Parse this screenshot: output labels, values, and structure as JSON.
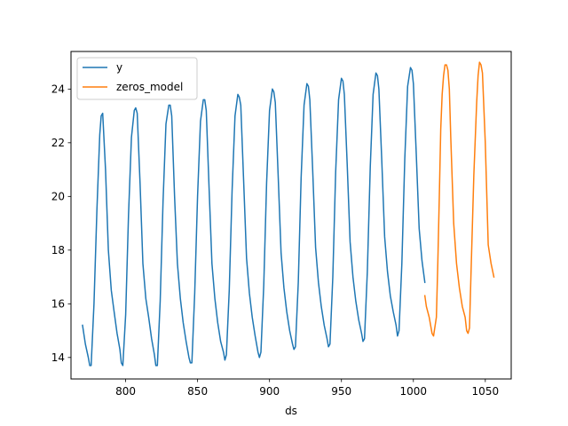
{
  "chart_data": {
    "type": "line",
    "xlabel": "ds",
    "ylabel": "",
    "xlim": [
      762,
      1068
    ],
    "ylim": [
      13.2,
      25.4
    ],
    "xticks": [
      800,
      850,
      900,
      950,
      1000,
      1050
    ],
    "yticks": [
      14,
      16,
      18,
      20,
      22,
      24
    ],
    "legend_position": "top-left",
    "series": [
      {
        "name": "y",
        "color": "#1f77b4",
        "x": [
          770,
          772,
          774,
          775,
          776,
          778,
          780,
          782,
          783,
          784,
          786,
          788,
          790,
          792,
          794,
          796,
          797,
          798,
          800,
          802,
          804,
          806,
          807,
          808,
          810,
          812,
          814,
          816,
          818,
          820,
          821,
          822,
          824,
          826,
          828,
          830,
          831,
          832,
          834,
          836,
          838,
          840,
          842,
          844,
          845,
          846,
          848,
          850,
          852,
          854,
          855,
          856,
          858,
          860,
          862,
          864,
          866,
          868,
          869,
          870,
          872,
          874,
          876,
          878,
          879,
          880,
          882,
          884,
          886,
          888,
          890,
          892,
          893,
          894,
          896,
          898,
          900,
          902,
          903,
          904,
          906,
          908,
          910,
          912,
          914,
          916,
          917,
          918,
          920,
          922,
          924,
          926,
          927,
          928,
          930,
          932,
          934,
          936,
          938,
          940,
          941,
          942,
          944,
          946,
          948,
          950,
          951,
          952,
          954,
          956,
          958,
          960,
          962,
          964,
          965,
          966,
          968,
          970,
          972,
          974,
          975,
          976,
          978,
          980,
          982,
          984,
          986,
          988,
          989,
          990,
          992,
          994,
          996,
          998,
          999,
          1000,
          1002,
          1004,
          1006,
          1008
        ],
        "values": [
          15.2,
          14.5,
          14.0,
          13.7,
          13.7,
          16.0,
          19.5,
          22.3,
          23.0,
          23.1,
          21.0,
          18.0,
          16.5,
          15.7,
          14.9,
          14.3,
          13.8,
          13.7,
          15.6,
          19.3,
          22.2,
          23.2,
          23.3,
          23.1,
          20.5,
          17.5,
          16.2,
          15.5,
          14.7,
          14.1,
          13.7,
          13.7,
          16.1,
          19.8,
          22.7,
          23.4,
          23.4,
          23.0,
          20.0,
          17.5,
          16.2,
          15.3,
          14.6,
          14.0,
          13.8,
          13.8,
          16.4,
          20.0,
          22.8,
          23.6,
          23.6,
          23.2,
          20.3,
          17.5,
          16.2,
          15.3,
          14.6,
          14.2,
          13.9,
          14.1,
          16.5,
          20.2,
          23.0,
          23.8,
          23.7,
          23.4,
          20.6,
          17.7,
          16.4,
          15.5,
          14.8,
          14.2,
          14.0,
          14.2,
          16.7,
          20.5,
          23.2,
          24.0,
          23.9,
          23.5,
          20.8,
          17.9,
          16.6,
          15.7,
          15.0,
          14.5,
          14.3,
          14.4,
          16.8,
          20.7,
          23.4,
          24.2,
          24.1,
          23.6,
          21.0,
          18.1,
          16.8,
          15.9,
          15.2,
          14.7,
          14.4,
          14.5,
          17.0,
          20.9,
          23.6,
          24.4,
          24.3,
          23.8,
          21.2,
          18.3,
          17.0,
          16.1,
          15.4,
          14.9,
          14.6,
          14.7,
          17.2,
          21.1,
          23.8,
          24.6,
          24.5,
          24.0,
          21.4,
          18.5,
          17.2,
          16.3,
          15.7,
          15.2,
          14.8,
          15.0,
          17.5,
          21.4,
          24.1,
          24.8,
          24.7,
          24.2,
          21.6,
          18.8,
          17.6,
          16.8
        ]
      },
      {
        "name": "zeros_model",
        "color": "#ff7f0e",
        "x": [
          1008,
          1009,
          1011,
          1013,
          1014,
          1016,
          1017,
          1018,
          1019,
          1020,
          1021,
          1022,
          1023,
          1024,
          1025,
          1026,
          1028,
          1030,
          1032,
          1034,
          1036,
          1037,
          1038,
          1039,
          1040,
          1042,
          1044,
          1045,
          1046,
          1047,
          1048,
          1050,
          1052,
          1054,
          1056
        ],
        "values": [
          16.3,
          15.9,
          15.5,
          14.9,
          14.8,
          15.5,
          17.5,
          20.0,
          22.5,
          23.8,
          24.5,
          24.9,
          24.9,
          24.7,
          24.0,
          22.2,
          19.0,
          17.5,
          16.6,
          15.9,
          15.5,
          15.0,
          14.9,
          15.1,
          17.0,
          20.8,
          23.5,
          24.5,
          25.0,
          24.9,
          24.6,
          22.0,
          18.2,
          17.5,
          17.0
        ]
      }
    ]
  }
}
